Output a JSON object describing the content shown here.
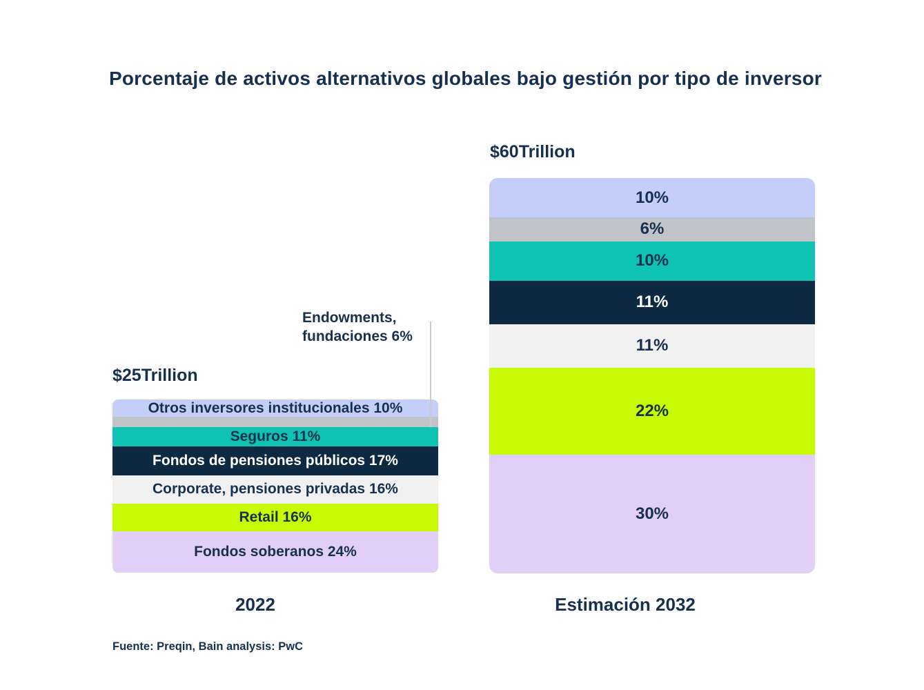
{
  "source": "Fuente: Preqin, Bain analysis: PwC",
  "callout": {
    "line1": "Endowments,",
    "line2": "fundaciones 6%"
  },
  "colors": {
    "background": "#ffffff",
    "text_navy": "#17304f",
    "callout_line": "#c9cdd2"
  },
  "chart_data": {
    "type": "bar",
    "subtype": "100-percent-stacked-columns",
    "title": "Porcentaje de activos alternativos globales bajo gestión por tipo de inversor",
    "categories": [
      "2022",
      "Estimación 2032"
    ],
    "totals": [
      "$25Trillion",
      "$60Trillion"
    ],
    "unit": "%",
    "legend_position": "labels-inside-bars",
    "series": [
      {
        "id": "otros-inversores-institucionales",
        "name": "Otros inversores institucionales",
        "values": [
          10,
          10
        ],
        "color": "#c5cdf9",
        "label_color": "#17304f",
        "label_in_bar_2022": true
      },
      {
        "id": "endowments-fundaciones",
        "name": "Endowments, fundaciones",
        "values": [
          6,
          6
        ],
        "color": "#c0c4c8",
        "label_color": "#17304f",
        "label_in_bar_2022": false
      },
      {
        "id": "seguros",
        "name": "Seguros",
        "values": [
          11,
          10
        ],
        "color": "#0ec3b3",
        "label_color": "#17304f",
        "label_in_bar_2022": true
      },
      {
        "id": "fondos-de-pensiones-publicos",
        "name": "Fondos de pensiones públicos",
        "values": [
          17,
          11
        ],
        "color": "#0e2a43",
        "label_color": "#ffffff",
        "label_in_bar_2022": true
      },
      {
        "id": "corporate-pensiones-privadas",
        "name": "Corporate, pensiones privadas",
        "values": [
          16,
          11
        ],
        "color": "#f1f1f2",
        "label_color": "#17304f",
        "label_in_bar_2022": true
      },
      {
        "id": "retail",
        "name": "Retail",
        "values": [
          16,
          22
        ],
        "color": "#c6fb03",
        "label_color": "#17304f",
        "label_in_bar_2022": true
      },
      {
        "id": "fondos-soberanos",
        "name": "Fondos soberanos",
        "values": [
          24,
          30
        ],
        "color": "#e2cff8",
        "label_color": "#17304f",
        "label_in_bar_2022": true
      }
    ]
  }
}
